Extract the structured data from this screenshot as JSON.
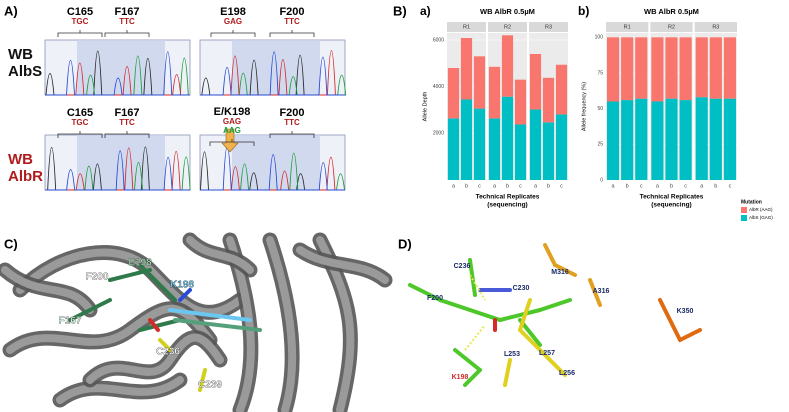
{
  "panel_labels": [
    "A)",
    "B)",
    "C)",
    "D)"
  ],
  "panel_a": {
    "row_labels": [
      {
        "line1": "WB",
        "line2": "AlbS"
      },
      {
        "line1": "WB",
        "line2": "AlbR"
      }
    ],
    "sites": [
      {
        "name": "C165",
        "codons": [
          "TGC"
        ]
      },
      {
        "name": "F167",
        "codons": [
          "TTC"
        ]
      },
      {
        "name": "E198",
        "codons": [
          "GAG"
        ]
      },
      {
        "name": "F200",
        "codons": [
          "TTC"
        ]
      },
      {
        "name": "C165",
        "codons": [
          "TGC"
        ]
      },
      {
        "name": "F167",
        "codons": [
          "TTC"
        ]
      },
      {
        "name": "E/K198",
        "codons": [
          "GAG",
          "AAG"
        ]
      },
      {
        "name": "F200",
        "codons": [
          "TTC"
        ]
      }
    ]
  },
  "chart_data": [
    {
      "type": "bar",
      "stacked": true,
      "subpanel": "a)",
      "title": "WB AlbR 0.5µM",
      "ylabel": "Allele Depth",
      "xlabel": [
        "Technical Replicates",
        "(sequencing)"
      ],
      "facets": [
        "R1",
        "R2",
        "R3"
      ],
      "categories": [
        "a",
        "b",
        "c",
        "a",
        "b",
        "c",
        "a",
        "b",
        "c"
      ],
      "series": [
        {
          "name": "AlbR  (AAG)",
          "color": "#f8766d",
          "values": [
            2160,
            2635,
            2240,
            2210,
            2630,
            1920,
            2380,
            1910,
            2130
          ]
        },
        {
          "name": "AlbS  (GAG)",
          "color": "#00bfc4",
          "values": [
            2640,
            3450,
            3060,
            2640,
            3570,
            2380,
            3020,
            2470,
            2810
          ]
        }
      ],
      "ylim": [
        0,
        6300
      ],
      "yticks": [
        2000,
        4000,
        6000
      ],
      "grid": true,
      "show_legend": false
    },
    {
      "type": "bar",
      "stacked": true,
      "subpanel": "b)",
      "title": "WB AlbR 0.5µM",
      "ylabel": "Allele frequency (%)",
      "xlabel": [
        "Technical Replicates",
        "(sequencing)"
      ],
      "facets": [
        "R1",
        "R2",
        "R3"
      ],
      "categories": [
        "a",
        "b",
        "c",
        "a",
        "b",
        "c",
        "a",
        "b",
        "c"
      ],
      "series": [
        {
          "name": "AlbR  (AAG)",
          "color": "#f8766d",
          "values": [
            45,
            44,
            43,
            45,
            43,
            44,
            42,
            43,
            43
          ]
        },
        {
          "name": "AlbS  (GAG)",
          "color": "#00bfc4",
          "values": [
            55,
            56,
            57,
            55,
            57,
            56,
            58,
            57,
            57
          ]
        }
      ],
      "ylim": [
        0,
        103
      ],
      "yticks": [
        0,
        25,
        50,
        75,
        100
      ],
      "grid": true,
      "show_legend": true,
      "legend_title": "Mutation",
      "legend_position": "right"
    }
  ],
  "panel_c": {
    "labels": [
      "F200",
      "E198",
      "K198",
      "F167",
      "C236",
      "C239"
    ]
  },
  "panel_d": {
    "labels": [
      "C236",
      "M316",
      "C230",
      "A316",
      "F200",
      "K350",
      "K198",
      "L253",
      "L257",
      "L256"
    ]
  }
}
